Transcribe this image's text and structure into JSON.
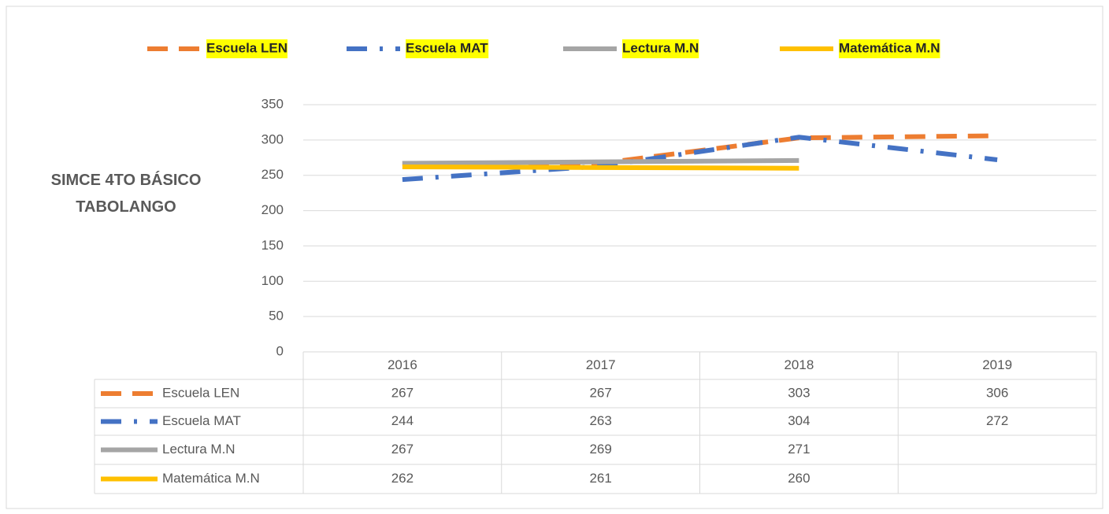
{
  "chart_data": {
    "type": "line",
    "y_label": "SIMCE 4TO BÁSICO TABOLANGO",
    "categories": [
      "2016",
      "2017",
      "2018",
      "2019"
    ],
    "series": [
      {
        "name": "Escuela LEN",
        "color": "#ED7D31",
        "dash": "long-dash",
        "values": [
          267,
          267,
          303,
          306
        ]
      },
      {
        "name": "Escuela MAT",
        "color": "#4472C4",
        "dash": "long-dash-dot",
        "values": [
          244,
          263,
          304,
          272
        ]
      },
      {
        "name": "Lectura  M.N",
        "color": "#A5A5A5",
        "dash": "solid",
        "values": [
          267,
          269,
          271,
          null
        ]
      },
      {
        "name": "Matemática M.N",
        "color": "#FFC000",
        "dash": "solid",
        "values": [
          262,
          261,
          260,
          null
        ]
      }
    ],
    "ylim": [
      0,
      350
    ],
    "yticks": [
      0,
      50,
      100,
      150,
      200,
      250,
      300,
      350
    ],
    "grid": true,
    "legend": "top",
    "legend_highlight": "#FFFF00",
    "data_table": true
  }
}
